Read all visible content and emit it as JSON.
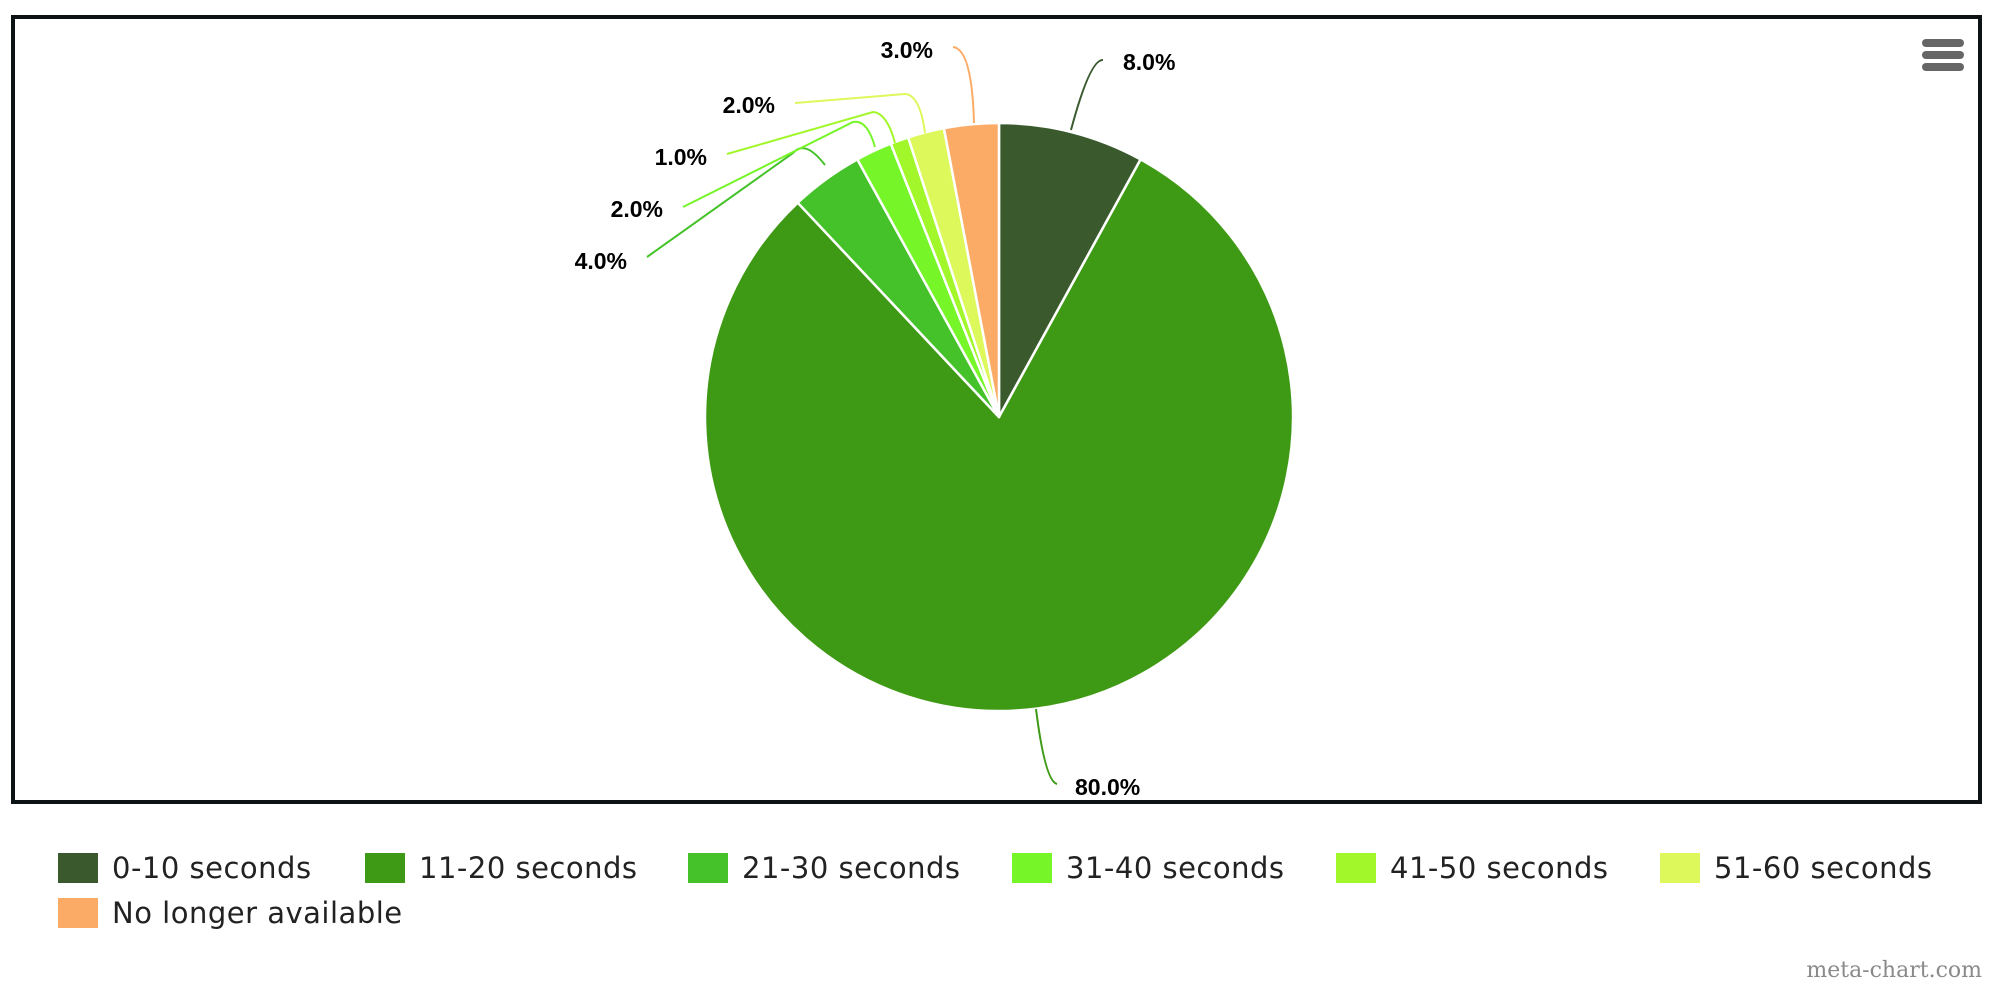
{
  "chart_data": {
    "type": "pie",
    "categories": [
      "0-10 seconds",
      "11-20 seconds",
      "21-30 seconds",
      "31-40 seconds",
      "41-50 seconds",
      "51-60 seconds",
      "No longer available"
    ],
    "values": [
      8.0,
      80.0,
      4.0,
      2.0,
      1.0,
      2.0,
      3.0
    ],
    "data_labels": [
      "8.0%",
      "80.0%",
      "4.0%",
      "2.0%",
      "1.0%",
      "2.0%",
      "3.0%"
    ],
    "colors": [
      "#3a5a2e",
      "#3e9a14",
      "#45c229",
      "#76f529",
      "#a1f72a",
      "#dcf85a",
      "#fcab67"
    ],
    "legend_position": "bottom",
    "start_angle": "top, clockwise"
  },
  "menu": {
    "icon": "hamburger-menu-icon"
  },
  "credit": "meta-chart.com"
}
